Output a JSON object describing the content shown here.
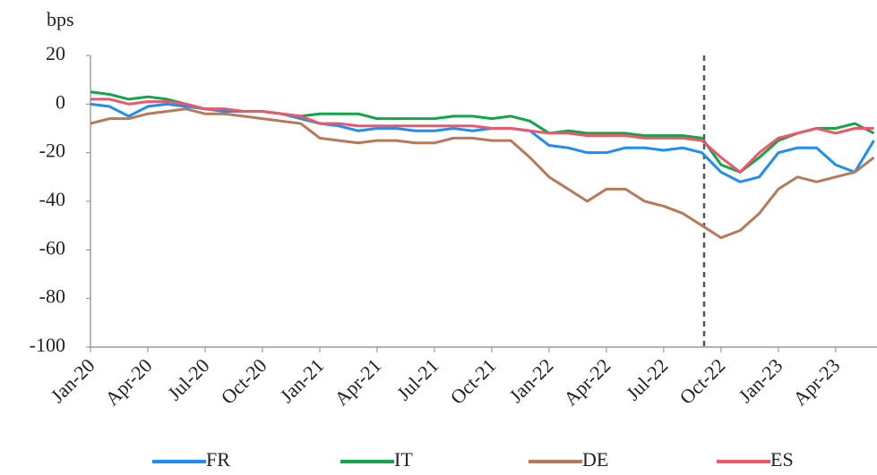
{
  "chart_data": {
    "type": "line",
    "y_label": "bps",
    "categories": [
      "Jan-20",
      null,
      null,
      "Apr-20",
      null,
      null,
      "Jul-20",
      null,
      null,
      "Oct-20",
      null,
      null,
      "Jan-21",
      null,
      null,
      "Apr-21",
      null,
      null,
      "Jul-21",
      null,
      null,
      "Oct-21",
      null,
      null,
      "Jan-22",
      null,
      null,
      "Apr-22",
      null,
      null,
      "Jul-22",
      null,
      null,
      "Oct-22",
      null,
      null,
      "Jan-23",
      null,
      null,
      "Apr-23",
      null,
      null
    ],
    "series": [
      {
        "name": "FR",
        "color": "#1f8ef1",
        "values": [
          0,
          -1,
          -5,
          -1,
          0,
          -1,
          -2,
          -3,
          -3,
          -3,
          -4,
          -6,
          -8,
          -9,
          -11,
          -10,
          -10,
          -11,
          -11,
          -10,
          -11,
          -10,
          -10,
          -11,
          -17,
          -18,
          -20,
          -20,
          -18,
          -18,
          -19,
          -18,
          -20,
          -28,
          -32,
          -30,
          -20,
          -18,
          -18,
          -25,
          -28,
          -15
        ]
      },
      {
        "name": "IT",
        "color": "#12a54a",
        "values": [
          5,
          4,
          2,
          3,
          2,
          0,
          -2,
          -2,
          -3,
          -3,
          -4,
          -5,
          -4,
          -4,
          -4,
          -6,
          -6,
          -6,
          -6,
          -5,
          -5,
          -6,
          -5,
          -7,
          -12,
          -11,
          -12,
          -12,
          -12,
          -13,
          -13,
          -13,
          -14,
          -25,
          -28,
          -22,
          -15,
          -12,
          -10,
          -10,
          -8,
          -12
        ]
      },
      {
        "name": "DE",
        "color": "#b8795a",
        "values": [
          -8,
          -6,
          -6,
          -4,
          -3,
          -2,
          -4,
          -4,
          -5,
          -6,
          -7,
          -8,
          -14,
          -15,
          -16,
          -15,
          -15,
          -16,
          -16,
          -14,
          -14,
          -15,
          -15,
          -22,
          -30,
          -35,
          -40,
          -35,
          -35,
          -40,
          -42,
          -45,
          -50,
          -55,
          -52,
          -45,
          -35,
          -30,
          -32,
          -30,
          -28,
          -22
        ]
      },
      {
        "name": "ES",
        "color": "#f0566a",
        "values": [
          2,
          2,
          0,
          1,
          1,
          0,
          -2,
          -2,
          -3,
          -3,
          -4,
          -5,
          -8,
          -8,
          -9,
          -9,
          -9,
          -9,
          -9,
          -9,
          -9,
          -10,
          -10,
          -11,
          -12,
          -12,
          -13,
          -13,
          -13,
          -14,
          -14,
          -14,
          -15,
          -22,
          -28,
          -20,
          -14,
          -12,
          -10,
          -12,
          -10,
          -10
        ]
      }
    ],
    "ylim": [
      -100,
      20
    ],
    "yticks": [
      -100,
      -80,
      -60,
      -40,
      -20,
      0,
      20
    ]
  }
}
